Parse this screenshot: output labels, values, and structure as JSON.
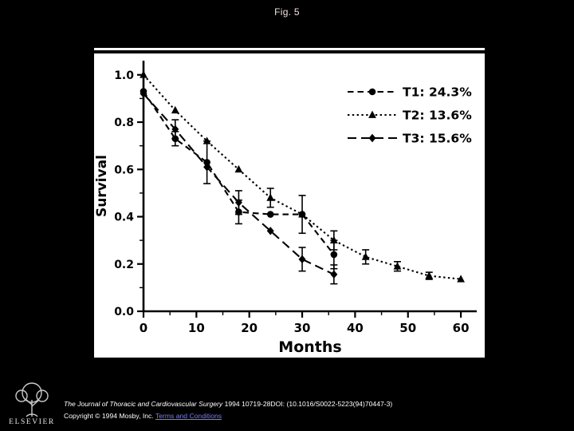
{
  "slide": {
    "title": "Fig. 5",
    "logo_text": "ELSEVIER"
  },
  "footer": {
    "journal": "The Journal of Thoracic and Cardiovascular Surgery",
    "citation_rest": " 1994 10719-28DOI: (10.1016/S0022-5223(94)70447-3)",
    "copyright": "Copyright © 1994 Mosby, Inc. ",
    "terms_label": "Terms and Conditions"
  },
  "chart_data": {
    "type": "line",
    "title": "",
    "xlabel": "Months",
    "ylabel": "Survival",
    "xlim": [
      0,
      63
    ],
    "ylim": [
      0,
      1.06
    ],
    "xticks": [
      0,
      10,
      20,
      30,
      40,
      50,
      60
    ],
    "yticks": [
      0.0,
      0.2,
      0.4,
      0.6,
      0.8,
      1.0
    ],
    "grid": false,
    "legend_position": "top-right",
    "line_color": "#000000",
    "series": [
      {
        "name": "T1: 24.3%",
        "marker": "circle",
        "dash": "dashed",
        "x": [
          0,
          6,
          12,
          18,
          24,
          30,
          36
        ],
        "y": [
          0.93,
          0.73,
          0.63,
          0.42,
          0.41,
          0.41,
          0.24
        ],
        "err": [
          0,
          0.03,
          0.09,
          0.05,
          0,
          0.08,
          0.06
        ]
      },
      {
        "name": "T2: 13.6%",
        "marker": "triangle",
        "dash": "dotted",
        "x": [
          0,
          6,
          12,
          18,
          24,
          30,
          36,
          42,
          48,
          54,
          60
        ],
        "y": [
          1.0,
          0.85,
          0.72,
          0.6,
          0.48,
          0.41,
          0.3,
          0.23,
          0.19,
          0.15,
          0.136
        ],
        "err": [
          0,
          0,
          0,
          0,
          0.04,
          0,
          0.04,
          0.03,
          0.02,
          0.015,
          0
        ]
      },
      {
        "name": "T3: 15.6%",
        "marker": "diamond",
        "dash": "long-dashed",
        "x": [
          0,
          6,
          12,
          18,
          24,
          30,
          36
        ],
        "y": [
          0.92,
          0.77,
          0.61,
          0.46,
          0.34,
          0.22,
          0.156
        ],
        "err": [
          0,
          0.04,
          0,
          0.05,
          0,
          0.05,
          0.04
        ]
      }
    ]
  }
}
